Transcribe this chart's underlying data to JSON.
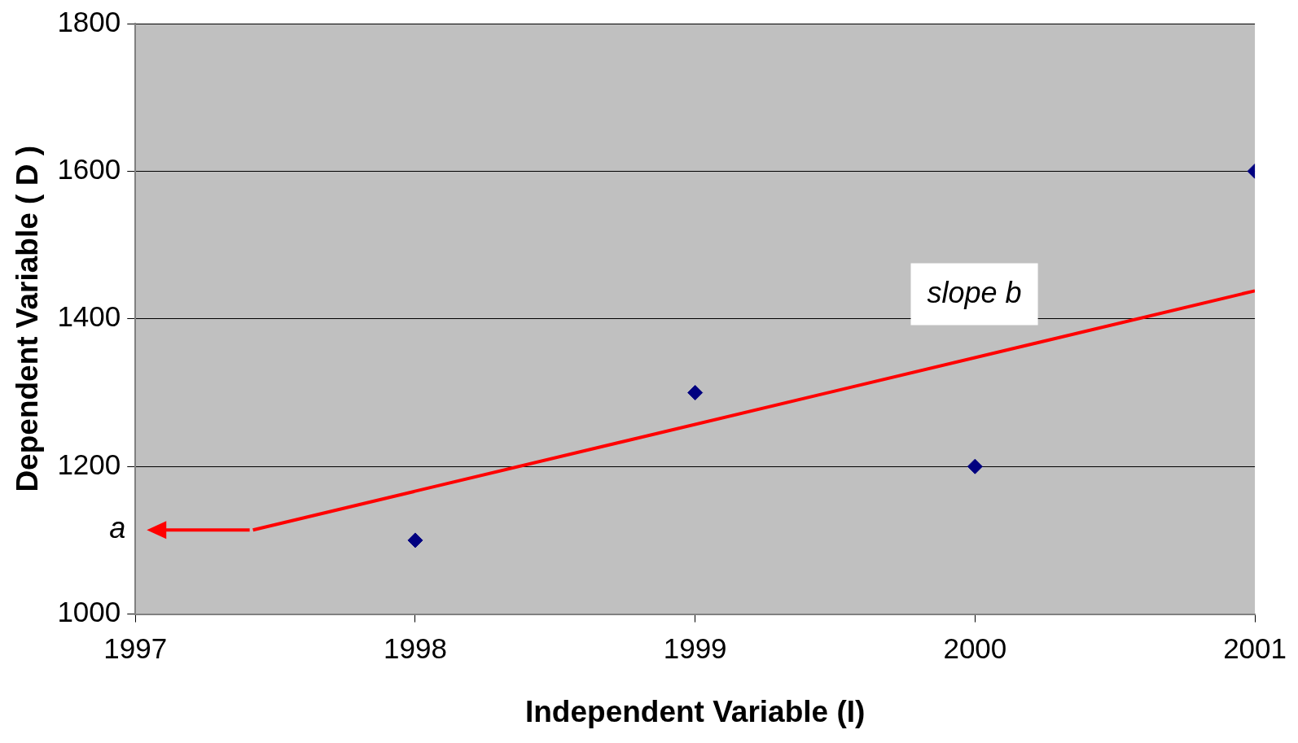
{
  "chart_data": {
    "type": "scatter",
    "xlabel": "Independent Variable (I)",
    "ylabel": "Dependent Variable ( D )",
    "xlim": [
      1997,
      2001
    ],
    "xticks": [
      1997,
      1998,
      1999,
      2000,
      2001
    ],
    "ylim": [
      1000,
      1800
    ],
    "yticks": [
      1000,
      1200,
      1400,
      1600,
      1800
    ],
    "grid": "y",
    "marker": "diamond",
    "series": [
      {
        "type": "scatter",
        "color": "#000080",
        "x": [
          1998,
          1999,
          2000,
          2001
        ],
        "values": [
          1100,
          1300,
          1200,
          1600
        ]
      },
      {
        "type": "line",
        "color": "#ff0000",
        "marker": "none",
        "x": [
          1997.42,
          2001
        ],
        "values": [
          1114,
          1438
        ]
      }
    ],
    "annotations": [
      "a",
      "slope b"
    ]
  }
}
